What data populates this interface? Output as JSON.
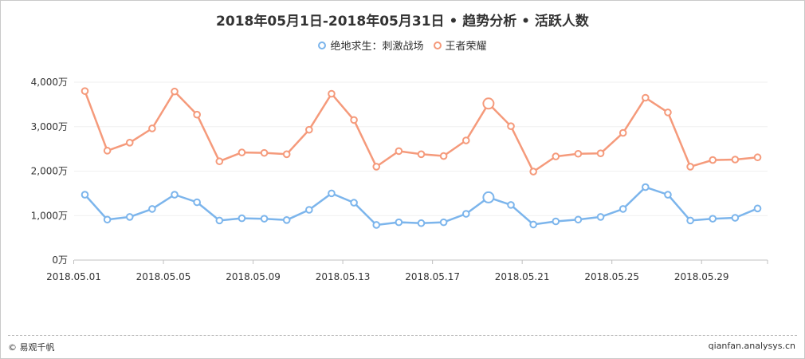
{
  "chart": {
    "title": "2018年05月1日-2018年05月31日 • 趋势分析 • 活跃人数"
  },
  "legend": {
    "items": [
      {
        "label": "绝地求生：刺激战场",
        "color": "#7cb5ec"
      },
      {
        "label": "王者荣耀",
        "color": "#f59a7b"
      }
    ]
  },
  "footer": {
    "left": "© 易观千帆",
    "right": "qianfan.analysys.cn"
  },
  "chart_data": {
    "type": "line",
    "title": "2018年05月1日-2018年05月31日 • 趋势分析 • 活跃人数",
    "x": [
      "2018.05.01",
      "2018.05.02",
      "2018.05.03",
      "2018.05.04",
      "2018.05.05",
      "2018.05.06",
      "2018.05.07",
      "2018.05.08",
      "2018.05.09",
      "2018.05.10",
      "2018.05.11",
      "2018.05.12",
      "2018.05.13",
      "2018.05.14",
      "2018.05.15",
      "2018.05.16",
      "2018.05.17",
      "2018.05.18",
      "2018.05.19",
      "2018.05.20",
      "2018.05.21",
      "2018.05.22",
      "2018.05.23",
      "2018.05.24",
      "2018.05.25",
      "2018.05.26",
      "2018.05.27",
      "2018.05.28",
      "2018.05.29",
      "2018.05.30",
      "2018.05.31"
    ],
    "x_tick_labels": [
      "2018.05.01",
      "2018.05.05",
      "2018.05.09",
      "2018.05.13",
      "2018.05.17",
      "2018.05.21",
      "2018.05.25",
      "2018.05.29"
    ],
    "y_tick_labels": [
      "0万",
      "1,000万",
      "2,000万",
      "3,000万",
      "4,000万"
    ],
    "ylim": [
      0,
      4000
    ],
    "y_unit": "万",
    "series": [
      {
        "name": "绝地求生：刺激战场",
        "color": "#7cb5ec",
        "values": [
          1470,
          910,
          970,
          1150,
          1470,
          1300,
          890,
          940,
          930,
          900,
          1130,
          1500,
          1290,
          790,
          850,
          830,
          850,
          1040,
          1410,
          1240,
          800,
          870,
          910,
          970,
          1150,
          1640,
          1470,
          890,
          930,
          950,
          1160
        ],
        "highlight_index": 18
      },
      {
        "name": "王者荣耀",
        "color": "#f59a7b",
        "values": [
          3800,
          2460,
          2640,
          2960,
          3790,
          3270,
          2220,
          2420,
          2410,
          2380,
          2930,
          3740,
          3150,
          2100,
          2450,
          2380,
          2340,
          2690,
          3520,
          3010,
          1990,
          2330,
          2390,
          2400,
          2860,
          3650,
          3320,
          2100,
          2250,
          2260,
          2310
        ],
        "highlight_index": 18
      }
    ],
    "grid": true,
    "legend_position": "top-center"
  }
}
